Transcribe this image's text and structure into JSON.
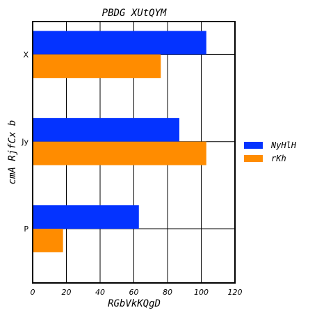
{
  "chart_data": {
    "type": "bar",
    "orientation": "horizontal",
    "title": "PBDG XUtQYM",
    "xlabel": "RGbVkKQgD",
    "ylabel": "cmA RjfCx b",
    "categories": [
      "X",
      "Jy",
      "P"
    ],
    "series": [
      {
        "name": "NyHlH",
        "values": [
          103,
          87,
          63
        ],
        "color": "#0433ff"
      },
      {
        "name": "rKh",
        "values": [
          76,
          103,
          18
        ],
        "color": "#ff8c00"
      }
    ],
    "xlim": [
      0,
      120
    ],
    "xticks": [
      0,
      20,
      40,
      60,
      80,
      100,
      120
    ],
    "grid": true,
    "legend_position": "right"
  }
}
